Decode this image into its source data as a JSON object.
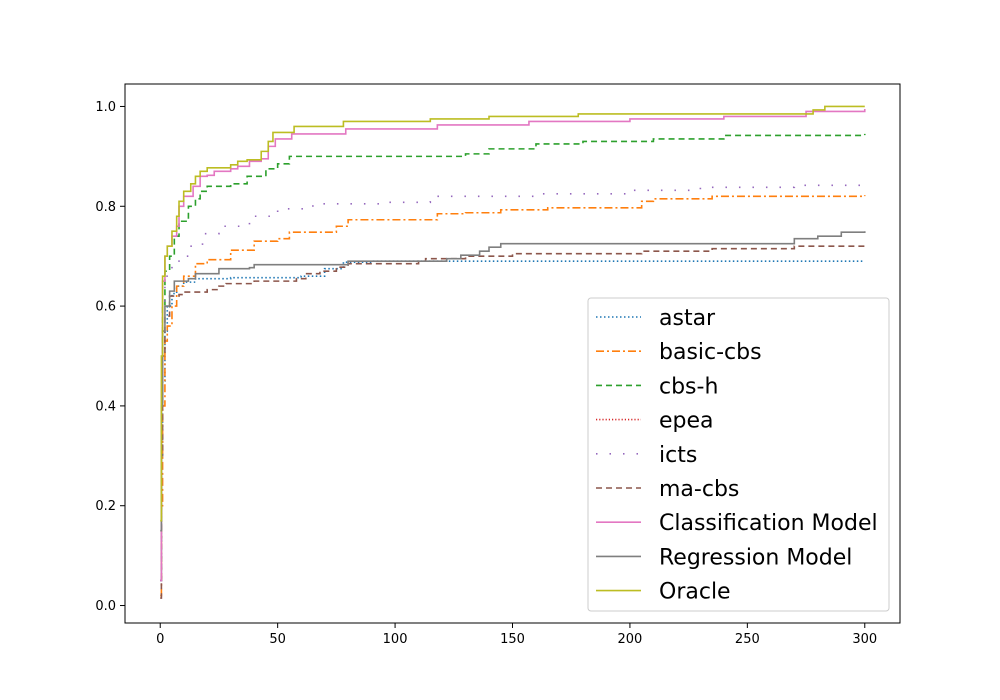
{
  "chart_data": {
    "type": "line",
    "title": "",
    "xlabel": "",
    "ylabel": "",
    "xlim": [
      -15,
      315
    ],
    "ylim": [
      -0.035,
      1.045
    ],
    "xticks": [
      0,
      50,
      100,
      150,
      200,
      250,
      300
    ],
    "yticks": [
      0.0,
      0.2,
      0.4,
      0.6,
      0.8,
      1.0
    ],
    "xtick_labels": [
      "0",
      "50",
      "100",
      "150",
      "200",
      "250",
      "300"
    ],
    "ytick_labels": [
      "0.0",
      "0.2",
      "0.4",
      "0.6",
      "0.8",
      "1.0"
    ],
    "grid": false,
    "legend_position": "lower-right",
    "series": [
      {
        "name": "astar",
        "color": "#1f77b4",
        "style": "dotted",
        "points": [
          [
            0,
            0.05
          ],
          [
            0.5,
            0.3
          ],
          [
            1,
            0.45
          ],
          [
            2,
            0.55
          ],
          [
            3,
            0.6
          ],
          [
            5,
            0.625
          ],
          [
            7,
            0.64
          ],
          [
            10,
            0.648
          ],
          [
            15,
            0.655
          ],
          [
            30,
            0.657
          ],
          [
            60,
            0.66
          ],
          [
            70,
            0.675
          ],
          [
            78,
            0.688
          ],
          [
            90,
            0.69
          ],
          [
            120,
            0.69
          ],
          [
            300,
            0.69
          ]
        ]
      },
      {
        "name": "basic-cbs",
        "color": "#ff7f0e",
        "style": "dashdot",
        "points": [
          [
            0,
            0.02
          ],
          [
            0.5,
            0.2
          ],
          [
            1,
            0.4
          ],
          [
            2,
            0.53
          ],
          [
            3,
            0.56
          ],
          [
            5,
            0.6
          ],
          [
            7,
            0.64
          ],
          [
            10,
            0.66
          ],
          [
            15,
            0.685
          ],
          [
            20,
            0.693
          ],
          [
            30,
            0.712
          ],
          [
            40,
            0.73
          ],
          [
            50,
            0.735
          ],
          [
            55,
            0.748
          ],
          [
            70,
            0.748
          ],
          [
            75,
            0.76
          ],
          [
            80,
            0.773
          ],
          [
            115,
            0.773
          ],
          [
            118,
            0.785
          ],
          [
            130,
            0.787
          ],
          [
            145,
            0.793
          ],
          [
            165,
            0.797
          ],
          [
            200,
            0.797
          ],
          [
            205,
            0.81
          ],
          [
            210,
            0.815
          ],
          [
            230,
            0.815
          ],
          [
            235,
            0.82
          ],
          [
            300,
            0.822
          ]
        ]
      },
      {
        "name": "cbs-h",
        "color": "#2ca02c",
        "style": "dashed",
        "points": [
          [
            0,
            0.05
          ],
          [
            0.5,
            0.4
          ],
          [
            1,
            0.6
          ],
          [
            2,
            0.67
          ],
          [
            4,
            0.7
          ],
          [
            6,
            0.74
          ],
          [
            8,
            0.77
          ],
          [
            12,
            0.8
          ],
          [
            15,
            0.815
          ],
          [
            17,
            0.83
          ],
          [
            20,
            0.84
          ],
          [
            30,
            0.845
          ],
          [
            37,
            0.86
          ],
          [
            45,
            0.875
          ],
          [
            50,
            0.885
          ],
          [
            55,
            0.9
          ],
          [
            120,
            0.9
          ],
          [
            130,
            0.905
          ],
          [
            140,
            0.915
          ],
          [
            160,
            0.925
          ],
          [
            180,
            0.93
          ],
          [
            210,
            0.935
          ],
          [
            240,
            0.942
          ],
          [
            300,
            0.945
          ]
        ]
      },
      {
        "name": "epea",
        "color": "#d62728",
        "style": "dotted-fine",
        "points": []
      },
      {
        "name": "icts",
        "color": "#9467bd",
        "style": "sparse-dots",
        "points": [
          [
            0,
            0.05
          ],
          [
            0.5,
            0.4
          ],
          [
            1,
            0.6
          ],
          [
            2,
            0.66
          ],
          [
            5,
            0.68
          ],
          [
            8,
            0.7
          ],
          [
            12,
            0.72
          ],
          [
            18,
            0.745
          ],
          [
            25,
            0.76
          ],
          [
            38,
            0.78
          ],
          [
            50,
            0.795
          ],
          [
            65,
            0.805
          ],
          [
            95,
            0.808
          ],
          [
            115,
            0.82
          ],
          [
            160,
            0.825
          ],
          [
            200,
            0.832
          ],
          [
            230,
            0.838
          ],
          [
            270,
            0.842
          ],
          [
            300,
            0.845
          ]
        ]
      },
      {
        "name": "ma-cbs",
        "color": "#8c564b",
        "style": "dashed",
        "points": [
          [
            0,
            0.015
          ],
          [
            0.5,
            0.3
          ],
          [
            1,
            0.5
          ],
          [
            2,
            0.58
          ],
          [
            4,
            0.62
          ],
          [
            8,
            0.623
          ],
          [
            10,
            0.628
          ],
          [
            20,
            0.633
          ],
          [
            25,
            0.64
          ],
          [
            28,
            0.645
          ],
          [
            40,
            0.65
          ],
          [
            58,
            0.655
          ],
          [
            62,
            0.665
          ],
          [
            68,
            0.67
          ],
          [
            75,
            0.678
          ],
          [
            80,
            0.685
          ],
          [
            110,
            0.69
          ],
          [
            113,
            0.695
          ],
          [
            130,
            0.7
          ],
          [
            150,
            0.705
          ],
          [
            205,
            0.71
          ],
          [
            235,
            0.715
          ],
          [
            270,
            0.72
          ],
          [
            300,
            0.72
          ]
        ]
      },
      {
        "name": "Classification Model",
        "color": "#e377c2",
        "style": "solid",
        "points": [
          [
            0,
            0.05
          ],
          [
            0.5,
            0.45
          ],
          [
            1,
            0.65
          ],
          [
            2,
            0.7
          ],
          [
            3,
            0.72
          ],
          [
            5,
            0.74
          ],
          [
            7,
            0.76
          ],
          [
            8,
            0.8
          ],
          [
            10,
            0.82
          ],
          [
            14,
            0.84
          ],
          [
            17,
            0.86
          ],
          [
            20,
            0.862
          ],
          [
            23,
            0.87
          ],
          [
            30,
            0.875
          ],
          [
            33,
            0.88
          ],
          [
            38,
            0.89
          ],
          [
            43,
            0.895
          ],
          [
            46,
            0.92
          ],
          [
            49,
            0.935
          ],
          [
            56,
            0.945
          ],
          [
            79,
            0.955
          ],
          [
            118,
            0.963
          ],
          [
            157,
            0.97
          ],
          [
            200,
            0.975
          ],
          [
            240,
            0.98
          ],
          [
            275,
            0.99
          ],
          [
            300,
            0.995
          ]
        ]
      },
      {
        "name": "Regression Model",
        "color": "#7f7f7f",
        "style": "solid",
        "points": [
          [
            0,
            0.15
          ],
          [
            0.5,
            0.4
          ],
          [
            1,
            0.55
          ],
          [
            2,
            0.6
          ],
          [
            4,
            0.63
          ],
          [
            6,
            0.65
          ],
          [
            12,
            0.655
          ],
          [
            15,
            0.665
          ],
          [
            25,
            0.675
          ],
          [
            38,
            0.677
          ],
          [
            40,
            0.683
          ],
          [
            58,
            0.683
          ],
          [
            68,
            0.683
          ],
          [
            80,
            0.69
          ],
          [
            90,
            0.69
          ],
          [
            122,
            0.695
          ],
          [
            128,
            0.702
          ],
          [
            136,
            0.71
          ],
          [
            140,
            0.718
          ],
          [
            145,
            0.725
          ],
          [
            250,
            0.725
          ],
          [
            270,
            0.735
          ],
          [
            280,
            0.74
          ],
          [
            290,
            0.748
          ],
          [
            300,
            0.75
          ]
        ]
      },
      {
        "name": "Oracle",
        "color": "#bcbd22",
        "style": "solid",
        "points": [
          [
            0,
            0.17
          ],
          [
            0.5,
            0.5
          ],
          [
            1,
            0.66
          ],
          [
            2,
            0.7
          ],
          [
            3,
            0.72
          ],
          [
            5,
            0.75
          ],
          [
            7,
            0.78
          ],
          [
            8,
            0.81
          ],
          [
            10,
            0.83
          ],
          [
            13,
            0.845
          ],
          [
            15,
            0.86
          ],
          [
            17,
            0.87
          ],
          [
            20,
            0.877
          ],
          [
            30,
            0.883
          ],
          [
            33,
            0.89
          ],
          [
            37,
            0.893
          ],
          [
            43,
            0.91
          ],
          [
            46,
            0.93
          ],
          [
            48,
            0.948
          ],
          [
            57,
            0.96
          ],
          [
            78,
            0.97
          ],
          [
            115,
            0.975
          ],
          [
            140,
            0.98
          ],
          [
            178,
            0.985
          ],
          [
            240,
            0.985
          ],
          [
            278,
            0.993
          ],
          [
            283,
            1.0
          ],
          [
            300,
            1.0
          ]
        ]
      }
    ]
  }
}
